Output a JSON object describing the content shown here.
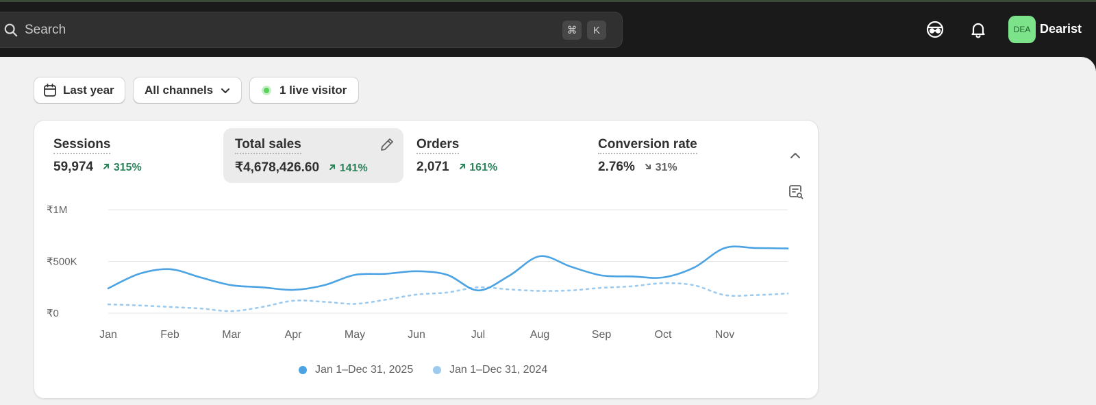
{
  "topbar": {
    "search_placeholder": "Search",
    "shortcut_cmd": "⌘",
    "shortcut_key": "K",
    "avatar_initials": "DEA",
    "store_name": "Dearist"
  },
  "filters": {
    "date_label": "Last year",
    "channels_label": "All channels",
    "live_label": "1 live visitor"
  },
  "metrics": [
    {
      "label": "Sessions",
      "value": "59,974",
      "change": "315%",
      "direction": "up"
    },
    {
      "label": "Total sales",
      "value": "₹4,678,426.60",
      "change": "141%",
      "direction": "up"
    },
    {
      "label": "Orders",
      "value": "2,071",
      "change": "161%",
      "direction": "up"
    },
    {
      "label": "Conversion rate",
      "value": "2.76%",
      "change": "31%",
      "direction": "down"
    }
  ],
  "colors": {
    "current_series": "#4ba3e3",
    "previous_series": "#9ccbef",
    "positive": "#29845a",
    "live_dot": "#5ad15a",
    "avatar": "#7ce38b"
  },
  "chart_data": {
    "type": "line",
    "x": [
      "Jan",
      "Jan15",
      "Feb",
      "Feb15",
      "Mar",
      "Mar15",
      "Apr",
      "Apr15",
      "May",
      "May15",
      "Jun",
      "Jun15",
      "Jul",
      "Jul15",
      "Aug",
      "Aug15",
      "Sep",
      "Sep15",
      "Oct",
      "Oct15",
      "Nov",
      "Nov15",
      "Dec31"
    ],
    "x_tick_labels": [
      "Jan",
      "Feb",
      "Mar",
      "Apr",
      "May",
      "Jun",
      "Jul",
      "Aug",
      "Sep",
      "Oct",
      "Nov"
    ],
    "y_tick_labels": [
      "₹1M",
      "₹500K",
      "₹0"
    ],
    "ylim": [
      0,
      1000000
    ],
    "grid": true,
    "legend_position": "bottom-center",
    "series": [
      {
        "name": "Jan 1–Dec 31, 2025",
        "style": "solid",
        "values": [
          240000,
          380000,
          425000,
          345000,
          270000,
          250000,
          225000,
          270000,
          370000,
          380000,
          405000,
          370000,
          220000,
          360000,
          550000,
          450000,
          365000,
          355000,
          345000,
          440000,
          630000,
          630000,
          625000
        ]
      },
      {
        "name": "Jan 1–Dec 31, 2024",
        "style": "dotted",
        "values": [
          85000,
          75000,
          60000,
          45000,
          20000,
          60000,
          120000,
          110000,
          90000,
          130000,
          180000,
          200000,
          250000,
          230000,
          215000,
          220000,
          245000,
          260000,
          290000,
          270000,
          175000,
          175000,
          190000
        ]
      }
    ]
  }
}
